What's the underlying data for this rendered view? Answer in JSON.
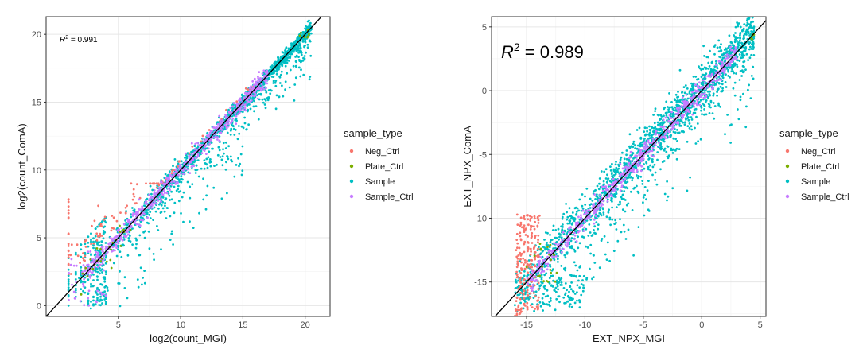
{
  "chart_data": [
    {
      "type": "scatter",
      "title": "",
      "xlabel": "log2(count_MGI)",
      "ylabel": "log2(count_ComA)",
      "xlim": [
        -0.8,
        22
      ],
      "ylim": [
        -0.8,
        21.3
      ],
      "x_ticks": [
        5,
        10,
        15,
        20
      ],
      "y_ticks": [
        0,
        5,
        10,
        15,
        20
      ],
      "grid": true,
      "annotation": {
        "prefix": "R",
        "sup": "2",
        "text": " = 0.991",
        "size": "small"
      },
      "trend_line": {
        "slope": 1,
        "intercept": 0,
        "x_range": [
          -0.8,
          21.3
        ]
      },
      "series": [
        {
          "name": "Neg_Ctrl",
          "cloud": "neg1"
        },
        {
          "name": "Plate_Ctrl",
          "cloud": "plate1"
        },
        {
          "name": "Sample",
          "cloud": "sample1"
        },
        {
          "name": "Sample_Ctrl",
          "cloud": "sctrl1"
        }
      ]
    },
    {
      "type": "scatter",
      "title": "",
      "xlabel": "EXT_NPX_MGI",
      "ylabel": "EXT_NPX_ComA",
      "xlim": [
        -18,
        5.5
      ],
      "ylim": [
        -17.7,
        5.8
      ],
      "x_ticks": [
        -15,
        -10,
        -5,
        0,
        5
      ],
      "y_ticks": [
        -15,
        -10,
        -5,
        0,
        5
      ],
      "grid": true,
      "annotation": {
        "prefix": "R",
        "sup": "2",
        "text": " = 0.989",
        "size": "large"
      },
      "trend_line": {
        "slope": 1,
        "intercept": 0,
        "x_range": [
          -18,
          5.5
        ]
      },
      "series": [
        {
          "name": "Neg_Ctrl",
          "cloud": "neg2"
        },
        {
          "name": "Plate_Ctrl",
          "cloud": "plate2"
        },
        {
          "name": "Sample",
          "cloud": "sample2"
        },
        {
          "name": "Sample_Ctrl",
          "cloud": "sctrl2"
        }
      ]
    }
  ],
  "legend": {
    "title": "sample_type",
    "items": [
      {
        "name": "Neg_Ctrl",
        "color": "#F8766D"
      },
      {
        "name": "Plate_Ctrl",
        "color": "#7CAE00"
      },
      {
        "name": "Sample",
        "color": "#00BFC4"
      },
      {
        "name": "Sample_Ctrl",
        "color": "#C77CFF"
      }
    ]
  },
  "colors": {
    "panel_border": "#333333",
    "grid_major": "#e6e6e6",
    "grid_minor": "#f2f2f2",
    "trend_line": "#000000"
  }
}
